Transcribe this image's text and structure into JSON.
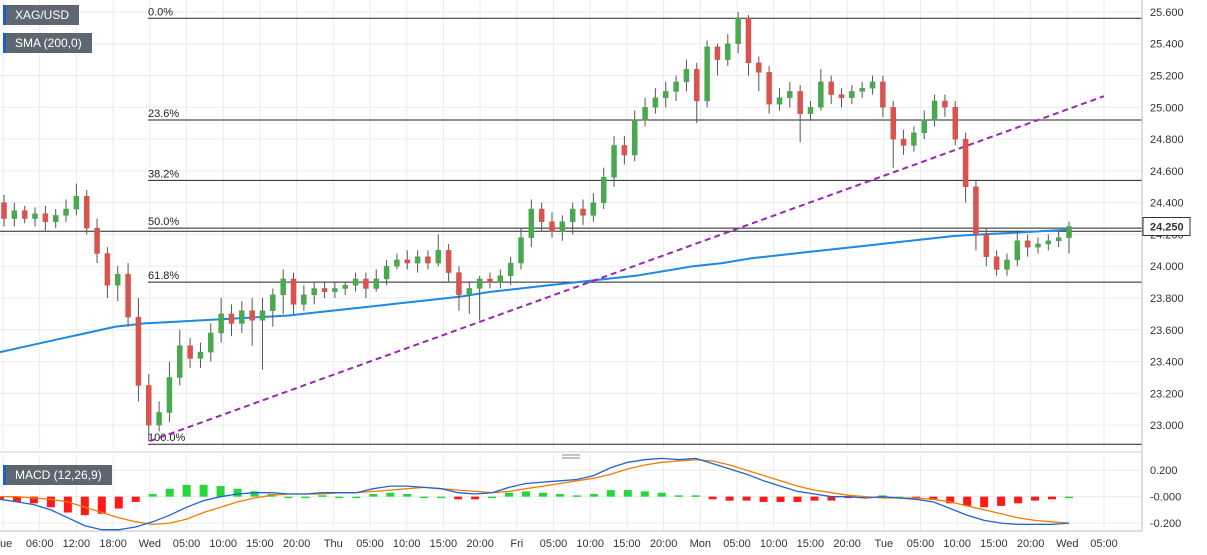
{
  "chart_data": [
    {
      "type": "candlestick",
      "symbol": "XAG/USD",
      "indicator": "SMA (200,0)",
      "current_price": "24.250",
      "ylim": [
        22.85,
        25.65
      ],
      "y_ticks": [
        "25.600",
        "25.400",
        "25.200",
        "25.000",
        "24.800",
        "24.600",
        "24.400",
        "24.200",
        "24.000",
        "23.800",
        "23.600",
        "23.400",
        "23.200",
        "23.000"
      ],
      "y_tick_values": [
        25.6,
        25.4,
        25.2,
        25.0,
        24.8,
        24.6,
        24.4,
        24.2,
        24.0,
        23.8,
        23.6,
        23.4,
        23.2,
        23.0
      ],
      "x_ticks": [
        "Tue",
        "06:00",
        "12:00",
        "18:00",
        "Wed",
        "05:00",
        "10:00",
        "15:00",
        "20:00",
        "Thu",
        "05:00",
        "10:00",
        "15:00",
        "20:00",
        "Fri",
        "05:00",
        "10:00",
        "15:00",
        "20:00",
        "Mon",
        "05:00",
        "10:00",
        "15:00",
        "20:00",
        "Tue",
        "05:00",
        "10:00",
        "15:00",
        "20:00",
        "Wed",
        "05:00"
      ],
      "fibonacci": [
        {
          "label": "0.0%",
          "price": 25.56
        },
        {
          "label": "23.6%",
          "price": 24.92
        },
        {
          "label": "38.2%",
          "price": 24.54
        },
        {
          "label": "50.0%",
          "price": 24.24
        },
        {
          "label": "61.8%",
          "price": 23.9
        },
        {
          "label": "100.0%",
          "price": 22.88
        }
      ],
      "candles": [
        [
          24.4,
          24.3,
          24.45,
          24.25
        ],
        [
          24.3,
          24.35,
          24.4,
          24.25
        ],
        [
          24.35,
          24.3,
          24.38,
          24.27
        ],
        [
          24.3,
          24.33,
          24.37,
          24.25
        ],
        [
          24.33,
          24.28,
          24.38,
          24.22
        ],
        [
          24.28,
          24.32,
          24.36,
          24.24
        ],
        [
          24.32,
          24.36,
          24.42,
          24.28
        ],
        [
          24.36,
          24.44,
          24.52,
          24.32
        ],
        [
          24.44,
          24.24,
          24.48,
          24.2
        ],
        [
          24.24,
          24.08,
          24.3,
          24.02
        ],
        [
          24.08,
          23.88,
          24.12,
          23.8
        ],
        [
          23.88,
          23.95,
          24.0,
          23.78
        ],
        [
          23.95,
          23.68,
          24.02,
          23.62
        ],
        [
          23.68,
          23.25,
          23.8,
          23.15
        ],
        [
          23.25,
          23.0,
          23.32,
          22.9
        ],
        [
          23.0,
          23.08,
          23.15,
          22.96
        ],
        [
          23.08,
          23.3,
          23.4,
          23.02
        ],
        [
          23.3,
          23.5,
          23.6,
          23.25
        ],
        [
          23.5,
          23.42,
          23.55,
          23.36
        ],
        [
          23.42,
          23.46,
          23.52,
          23.36
        ],
        [
          23.46,
          23.58,
          23.64,
          23.4
        ],
        [
          23.58,
          23.7,
          23.8,
          23.52
        ],
        [
          23.7,
          23.64,
          23.76,
          23.56
        ],
        [
          23.64,
          23.72,
          23.78,
          23.58
        ],
        [
          23.72,
          23.66,
          23.8,
          23.5
        ],
        [
          23.66,
          23.72,
          23.8,
          23.35
        ],
        [
          23.72,
          23.82,
          23.86,
          23.62
        ],
        [
          23.82,
          23.92,
          23.98,
          23.7
        ],
        [
          23.92,
          23.76,
          23.96,
          23.7
        ],
        [
          23.76,
          23.82,
          23.88,
          23.72
        ],
        [
          23.82,
          23.86,
          23.9,
          23.76
        ],
        [
          23.86,
          23.84,
          23.9,
          23.8
        ],
        [
          23.84,
          23.86,
          23.9,
          23.8
        ],
        [
          23.86,
          23.88,
          23.9,
          23.82
        ],
        [
          23.88,
          23.92,
          23.96,
          23.84
        ],
        [
          23.92,
          23.86,
          23.96,
          23.8
        ],
        [
          23.86,
          23.92,
          23.98,
          23.84
        ],
        [
          23.92,
          24.0,
          24.04,
          23.88
        ],
        [
          24.0,
          24.04,
          24.08,
          23.98
        ],
        [
          24.04,
          24.02,
          24.1,
          23.98
        ],
        [
          24.02,
          24.06,
          24.1,
          23.96
        ],
        [
          24.06,
          24.02,
          24.1,
          23.98
        ],
        [
          24.02,
          24.1,
          24.2,
          24.0
        ],
        [
          24.1,
          23.96,
          24.14,
          23.9
        ],
        [
          23.96,
          23.82,
          24.0,
          23.72
        ],
        [
          23.82,
          23.86,
          23.9,
          23.7
        ],
        [
          23.86,
          23.92,
          23.94,
          23.66
        ],
        [
          23.92,
          23.9,
          23.96,
          23.86
        ],
        [
          23.9,
          23.94,
          23.98,
          23.86
        ],
        [
          23.94,
          24.02,
          24.06,
          23.88
        ],
        [
          24.02,
          24.18,
          24.24,
          23.98
        ],
        [
          24.18,
          24.36,
          24.42,
          24.12
        ],
        [
          24.36,
          24.28,
          24.4,
          24.22
        ],
        [
          24.28,
          24.22,
          24.34,
          24.18
        ],
        [
          24.22,
          24.28,
          24.32,
          24.16
        ],
        [
          24.28,
          24.36,
          24.4,
          24.2
        ],
        [
          24.36,
          24.32,
          24.42,
          24.26
        ],
        [
          24.32,
          24.4,
          24.46,
          24.28
        ],
        [
          24.4,
          24.56,
          24.62,
          24.36
        ],
        [
          24.56,
          24.76,
          24.82,
          24.5
        ],
        [
          24.76,
          24.7,
          24.82,
          24.64
        ],
        [
          24.7,
          24.92,
          24.98,
          24.66
        ],
        [
          24.92,
          25.0,
          25.06,
          24.88
        ],
        [
          25.0,
          25.06,
          25.12,
          24.96
        ],
        [
          25.06,
          25.1,
          25.16,
          25.0
        ],
        [
          25.1,
          25.16,
          25.2,
          25.04
        ],
        [
          25.16,
          25.24,
          25.3,
          25.1
        ],
        [
          25.24,
          25.04,
          25.28,
          24.9
        ],
        [
          25.04,
          25.38,
          25.42,
          25.0
        ],
        [
          25.38,
          25.3,
          25.4,
          25.2
        ],
        [
          25.3,
          25.4,
          25.46,
          25.26
        ],
        [
          25.4,
          25.56,
          25.6,
          25.34
        ],
        [
          25.56,
          25.28,
          25.58,
          25.2
        ],
        [
          25.28,
          25.22,
          25.32,
          25.1
        ],
        [
          25.22,
          25.02,
          25.26,
          24.96
        ],
        [
          25.02,
          25.06,
          25.12,
          24.98
        ],
        [
          25.06,
          25.1,
          25.16,
          25.0
        ],
        [
          25.1,
          24.96,
          25.14,
          24.78
        ],
        [
          24.96,
          25.0,
          25.04,
          24.92
        ],
        [
          25.0,
          25.16,
          25.24,
          24.98
        ],
        [
          25.16,
          25.08,
          25.2,
          25.02
        ],
        [
          25.08,
          25.06,
          25.12,
          25.0
        ],
        [
          25.06,
          25.1,
          25.14,
          25.02
        ],
        [
          25.1,
          25.12,
          25.16,
          25.06
        ],
        [
          25.12,
          25.16,
          25.2,
          25.08
        ],
        [
          25.16,
          25.0,
          25.2,
          24.94
        ],
        [
          25.0,
          24.8,
          25.04,
          24.62
        ],
        [
          24.8,
          24.76,
          24.86,
          24.7
        ],
        [
          24.76,
          24.84,
          24.88,
          24.72
        ],
        [
          24.84,
          24.92,
          24.98,
          24.8
        ],
        [
          24.92,
          25.04,
          25.08,
          24.88
        ],
        [
          25.04,
          25.0,
          25.08,
          24.94
        ],
        [
          25.0,
          24.8,
          25.04,
          24.76
        ],
        [
          24.8,
          24.5,
          24.84,
          24.4
        ],
        [
          24.5,
          24.2,
          24.54,
          24.1
        ],
        [
          24.2,
          24.06,
          24.24,
          24.0
        ],
        [
          24.06,
          23.98,
          24.1,
          23.94
        ],
        [
          23.98,
          24.04,
          24.08,
          23.94
        ],
        [
          24.04,
          24.16,
          24.22,
          24.0
        ],
        [
          24.16,
          24.12,
          24.2,
          24.06
        ],
        [
          24.12,
          24.14,
          24.18,
          24.08
        ],
        [
          24.14,
          24.16,
          24.2,
          24.1
        ],
        [
          24.16,
          24.18,
          24.22,
          24.12
        ],
        [
          24.18,
          24.25,
          24.28,
          24.08
        ]
      ],
      "sma200": [
        23.46,
        23.5,
        23.54,
        23.58,
        23.62,
        23.64,
        23.65,
        23.66,
        23.67,
        23.68,
        23.69,
        23.71,
        23.73,
        23.75,
        23.77,
        23.79,
        23.81,
        23.84,
        23.86,
        23.88,
        23.9,
        23.92,
        23.94,
        23.97,
        24.0,
        24.02,
        24.05,
        24.07,
        24.09,
        24.11,
        24.13,
        24.15,
        24.17,
        24.19,
        24.2,
        24.21,
        24.22,
        24.23
      ],
      "trendline": {
        "from_price": 22.9,
        "to_price": 25.07
      }
    },
    {
      "type": "macd",
      "label": "MACD (12,26,9)",
      "ylim": [
        -0.26,
        0.27
      ],
      "y_ticks": [
        "0.200",
        "-0.000",
        "-0.200"
      ],
      "y_tick_values": [
        0.2,
        0.0,
        -0.2
      ],
      "macd": [
        -0.02,
        -0.04,
        -0.06,
        -0.1,
        -0.16,
        -0.22,
        -0.25,
        -0.25,
        -0.23,
        -0.19,
        -0.14,
        -0.08,
        -0.03,
        0.0,
        0.02,
        0.03,
        0.03,
        0.02,
        0.02,
        0.03,
        0.03,
        0.03,
        0.06,
        0.08,
        0.08,
        0.07,
        0.06,
        0.03,
        0.02,
        0.03,
        0.07,
        0.1,
        0.11,
        0.12,
        0.13,
        0.16,
        0.22,
        0.26,
        0.28,
        0.29,
        0.28,
        0.29,
        0.25,
        0.21,
        0.17,
        0.12,
        0.08,
        0.04,
        0.02,
        0.0,
        0.0,
        -0.01,
        0.0,
        -0.01,
        -0.02,
        -0.04,
        -0.09,
        -0.14,
        -0.18,
        -0.2,
        -0.21,
        -0.21,
        -0.21,
        -0.2
      ],
      "signal": [
        0.0,
        0.0,
        -0.01,
        -0.02,
        -0.04,
        -0.08,
        -0.12,
        -0.16,
        -0.19,
        -0.21,
        -0.2,
        -0.17,
        -0.12,
        -0.08,
        -0.04,
        -0.01,
        0.01,
        0.02,
        0.02,
        0.02,
        0.03,
        0.03,
        0.04,
        0.05,
        0.06,
        0.07,
        0.06,
        0.05,
        0.04,
        0.03,
        0.04,
        0.06,
        0.08,
        0.1,
        0.12,
        0.14,
        0.17,
        0.21,
        0.24,
        0.26,
        0.27,
        0.28,
        0.27,
        0.24,
        0.2,
        0.16,
        0.12,
        0.08,
        0.05,
        0.03,
        0.01,
        0.0,
        -0.01,
        -0.01,
        -0.01,
        -0.02,
        -0.04,
        -0.07,
        -0.1,
        -0.13,
        -0.16,
        -0.18,
        -0.19,
        -0.2
      ]
    }
  ]
}
